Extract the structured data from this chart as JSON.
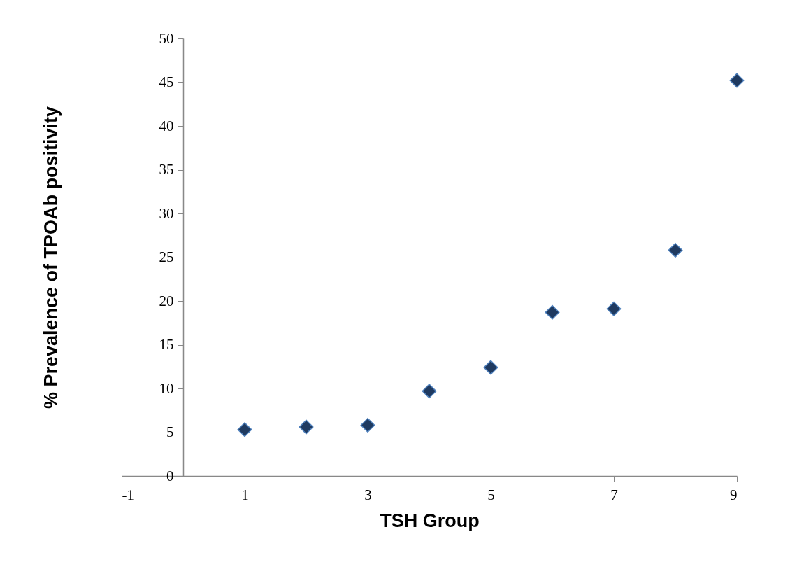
{
  "chart_data": {
    "type": "scatter",
    "xlabel": "TSH Group",
    "ylabel": "% Prevalence of TPOAb positivity",
    "x": [
      1,
      2,
      3,
      4,
      5,
      6,
      7,
      8,
      9
    ],
    "series": [
      {
        "color": "#1f3a60",
        "values": [
          5.3,
          5.6,
          5.8,
          9.7,
          12.4,
          18.7,
          19.1,
          25.8,
          45.2
        ]
      }
    ],
    "xlim": [
      -1,
      9
    ],
    "xticks": [
      -1,
      1,
      3,
      5,
      7,
      9
    ],
    "ylim": [
      0,
      50
    ],
    "yticks": [
      0,
      5,
      10,
      15,
      20,
      25,
      30,
      35,
      40,
      45,
      50
    ],
    "grid": false,
    "marker": "diamond"
  }
}
